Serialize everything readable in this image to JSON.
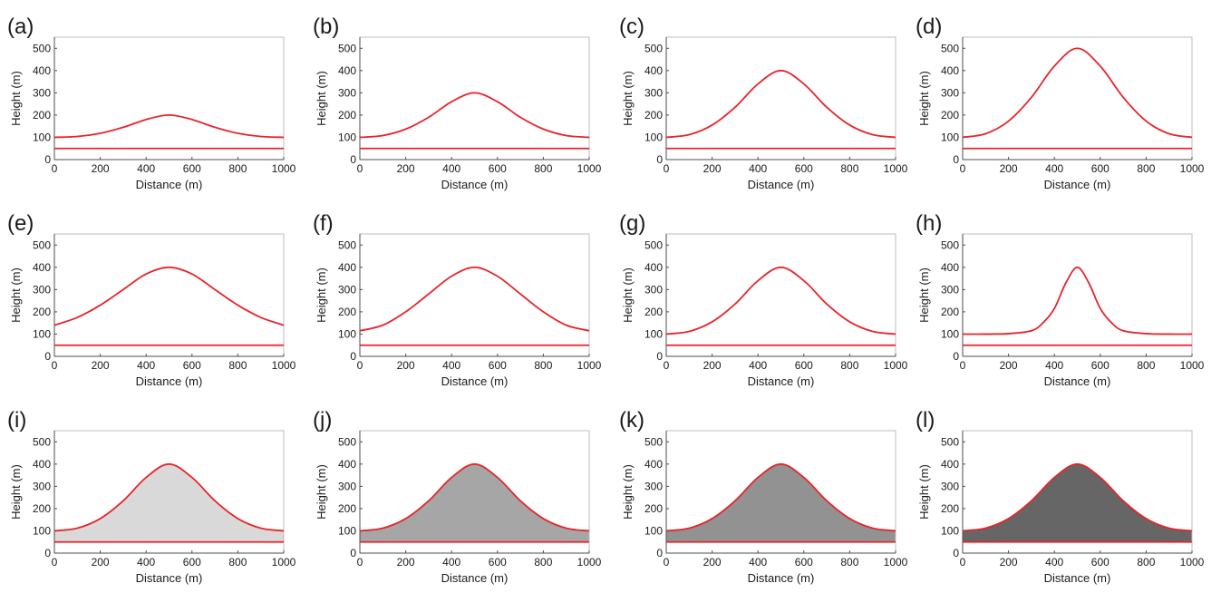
{
  "panel_labels": [
    "(a)",
    "(b)",
    "(c)",
    "(d)",
    "(e)",
    "(f)",
    "(g)",
    "(h)",
    "(i)",
    "(j)",
    "(k)",
    "(l)"
  ],
  "chart_data": [
    {
      "label": "(a)",
      "type": "line",
      "xlabel": "Distance (m)",
      "ylabel": "Height (m)",
      "xlim": [
        0,
        1000
      ],
      "ylim": [
        0,
        550
      ],
      "xticks": [
        0,
        200,
        400,
        600,
        800,
        1000
      ],
      "yticks": [
        0,
        100,
        200,
        300,
        400,
        500
      ],
      "series": [
        {
          "x": [
            0,
            100,
            200,
            300,
            400,
            500,
            600,
            700,
            800,
            900,
            1000
          ],
          "y": [
            100,
            104,
            118,
            145,
            180,
            200,
            180,
            145,
            118,
            104,
            100
          ]
        },
        {
          "x": [
            0,
            1000
          ],
          "y": [
            50,
            50
          ]
        }
      ],
      "line_color": "#e8242a",
      "fill": null
    },
    {
      "label": "(b)",
      "type": "line",
      "xlabel": "Distance (m)",
      "ylabel": "Height (m)",
      "xlim": [
        0,
        1000
      ],
      "ylim": [
        0,
        550
      ],
      "xticks": [
        0,
        200,
        400,
        600,
        800,
        1000
      ],
      "yticks": [
        0,
        100,
        200,
        300,
        400,
        500
      ],
      "series": [
        {
          "x": [
            0,
            100,
            200,
            300,
            400,
            500,
            600,
            700,
            800,
            900,
            1000
          ],
          "y": [
            100,
            108,
            137,
            190,
            260,
            300,
            260,
            190,
            137,
            108,
            100
          ]
        },
        {
          "x": [
            0,
            1000
          ],
          "y": [
            50,
            50
          ]
        }
      ],
      "line_color": "#e8242a",
      "fill": null
    },
    {
      "label": "(c)",
      "type": "line",
      "xlabel": "Distance (m)",
      "ylabel": "Height (m)",
      "xlim": [
        0,
        1000
      ],
      "ylim": [
        0,
        550
      ],
      "xticks": [
        0,
        200,
        400,
        600,
        800,
        1000
      ],
      "yticks": [
        0,
        100,
        200,
        300,
        400,
        500
      ],
      "series": [
        {
          "x": [
            0,
            100,
            200,
            300,
            400,
            500,
            600,
            700,
            800,
            900,
            1000
          ],
          "y": [
            100,
            112,
            155,
            235,
            340,
            400,
            340,
            235,
            155,
            112,
            100
          ]
        },
        {
          "x": [
            0,
            1000
          ],
          "y": [
            50,
            50
          ]
        }
      ],
      "line_color": "#e8242a",
      "fill": null
    },
    {
      "label": "(d)",
      "type": "line",
      "xlabel": "Distance (m)",
      "ylabel": "Height (m)",
      "xlim": [
        0,
        1000
      ],
      "ylim": [
        0,
        550
      ],
      "xticks": [
        0,
        200,
        400,
        600,
        800,
        1000
      ],
      "yticks": [
        0,
        100,
        200,
        300,
        400,
        500
      ],
      "series": [
        {
          "x": [
            0,
            100,
            200,
            300,
            400,
            500,
            600,
            700,
            800,
            900,
            1000
          ],
          "y": [
            100,
            116,
            173,
            280,
            420,
            500,
            420,
            280,
            173,
            116,
            100
          ]
        },
        {
          "x": [
            0,
            1000
          ],
          "y": [
            50,
            50
          ]
        }
      ],
      "line_color": "#e8242a",
      "fill": null
    },
    {
      "label": "(e)",
      "type": "line",
      "xlabel": "Distance (m)",
      "ylabel": "Height (m)",
      "xlim": [
        0,
        1000
      ],
      "ylim": [
        0,
        550
      ],
      "xticks": [
        0,
        200,
        400,
        600,
        800,
        1000
      ],
      "yticks": [
        0,
        100,
        200,
        300,
        400,
        500
      ],
      "series": [
        {
          "x": [
            0,
            100,
            200,
            300,
            400,
            500,
            600,
            700,
            800,
            900,
            1000
          ],
          "y": [
            140,
            175,
            230,
            300,
            370,
            400,
            370,
            300,
            230,
            175,
            140
          ]
        },
        {
          "x": [
            0,
            1000
          ],
          "y": [
            50,
            50
          ]
        }
      ],
      "line_color": "#e8242a",
      "fill": null
    },
    {
      "label": "(f)",
      "type": "line",
      "xlabel": "Distance (m)",
      "ylabel": "Height (m)",
      "xlim": [
        0,
        1000
      ],
      "ylim": [
        0,
        550
      ],
      "xticks": [
        0,
        200,
        400,
        600,
        800,
        1000
      ],
      "yticks": [
        0,
        100,
        200,
        300,
        400,
        500
      ],
      "series": [
        {
          "x": [
            0,
            100,
            200,
            300,
            400,
            500,
            600,
            700,
            800,
            900,
            1000
          ],
          "y": [
            115,
            140,
            200,
            280,
            360,
            400,
            360,
            280,
            200,
            140,
            115
          ]
        },
        {
          "x": [
            0,
            1000
          ],
          "y": [
            50,
            50
          ]
        }
      ],
      "line_color": "#e8242a",
      "fill": null
    },
    {
      "label": "(g)",
      "type": "line",
      "xlabel": "Distance (m)",
      "ylabel": "Height (m)",
      "xlim": [
        0,
        1000
      ],
      "ylim": [
        0,
        550
      ],
      "xticks": [
        0,
        200,
        400,
        600,
        800,
        1000
      ],
      "yticks": [
        0,
        100,
        200,
        300,
        400,
        500
      ],
      "series": [
        {
          "x": [
            0,
            100,
            200,
            300,
            400,
            500,
            600,
            700,
            800,
            900,
            1000
          ],
          "y": [
            100,
            112,
            155,
            235,
            340,
            400,
            340,
            235,
            155,
            112,
            100
          ]
        },
        {
          "x": [
            0,
            1000
          ],
          "y": [
            50,
            50
          ]
        }
      ],
      "line_color": "#e8242a",
      "fill": null
    },
    {
      "label": "(h)",
      "type": "line",
      "xlabel": "Distance (m)",
      "ylabel": "Height (m)",
      "xlim": [
        0,
        1000
      ],
      "ylim": [
        0,
        550
      ],
      "xticks": [
        0,
        200,
        400,
        600,
        800,
        1000
      ],
      "yticks": [
        0,
        100,
        200,
        300,
        400,
        500
      ],
      "series": [
        {
          "x": [
            0,
            100,
            200,
            300,
            350,
            400,
            450,
            500,
            550,
            600,
            650,
            700,
            800,
            900,
            1000
          ],
          "y": [
            100,
            100,
            102,
            115,
            150,
            215,
            330,
            400,
            330,
            215,
            150,
            115,
            102,
            100,
            100
          ]
        },
        {
          "x": [
            0,
            1000
          ],
          "y": [
            50,
            50
          ]
        }
      ],
      "line_color": "#e8242a",
      "fill": null
    },
    {
      "label": "(i)",
      "type": "area",
      "xlabel": "Distance (m)",
      "ylabel": "Height (m)",
      "xlim": [
        0,
        1000
      ],
      "ylim": [
        0,
        550
      ],
      "xticks": [
        0,
        200,
        400,
        600,
        800,
        1000
      ],
      "yticks": [
        0,
        100,
        200,
        300,
        400,
        500
      ],
      "series": [
        {
          "x": [
            0,
            100,
            200,
            300,
            400,
            500,
            600,
            700,
            800,
            900,
            1000
          ],
          "y": [
            100,
            112,
            155,
            235,
            340,
            400,
            340,
            235,
            155,
            112,
            100
          ]
        },
        {
          "x": [
            0,
            1000
          ],
          "y": [
            50,
            50
          ]
        }
      ],
      "line_color": "#e8242a",
      "fill": "#d9d9d9"
    },
    {
      "label": "(j)",
      "type": "area",
      "xlabel": "Distance (m)",
      "ylabel": "Height (m)",
      "xlim": [
        0,
        1000
      ],
      "ylim": [
        0,
        550
      ],
      "xticks": [
        0,
        200,
        400,
        600,
        800,
        1000
      ],
      "yticks": [
        0,
        100,
        200,
        300,
        400,
        500
      ],
      "series": [
        {
          "x": [
            0,
            100,
            200,
            300,
            400,
            500,
            600,
            700,
            800,
            900,
            1000
          ],
          "y": [
            100,
            112,
            155,
            235,
            340,
            400,
            340,
            235,
            155,
            112,
            100
          ]
        },
        {
          "x": [
            0,
            1000
          ],
          "y": [
            50,
            50
          ]
        }
      ],
      "line_color": "#e8242a",
      "fill": "#a6a6a6"
    },
    {
      "label": "(k)",
      "type": "area",
      "xlabel": "Distance (m)",
      "ylabel": "Height (m)",
      "xlim": [
        0,
        1000
      ],
      "ylim": [
        0,
        550
      ],
      "xticks": [
        0,
        200,
        400,
        600,
        800,
        1000
      ],
      "yticks": [
        0,
        100,
        200,
        300,
        400,
        500
      ],
      "series": [
        {
          "x": [
            0,
            100,
            200,
            300,
            400,
            500,
            600,
            700,
            800,
            900,
            1000
          ],
          "y": [
            100,
            112,
            155,
            235,
            340,
            400,
            340,
            235,
            155,
            112,
            100
          ]
        },
        {
          "x": [
            0,
            1000
          ],
          "y": [
            50,
            50
          ]
        }
      ],
      "line_color": "#e8242a",
      "fill": "#929292"
    },
    {
      "label": "(l)",
      "type": "area",
      "xlabel": "Distance (m)",
      "ylabel": "Height (m)",
      "xlim": [
        0,
        1000
      ],
      "ylim": [
        0,
        550
      ],
      "xticks": [
        0,
        200,
        400,
        600,
        800,
        1000
      ],
      "yticks": [
        0,
        100,
        200,
        300,
        400,
        500
      ],
      "series": [
        {
          "x": [
            0,
            100,
            200,
            300,
            400,
            500,
            600,
            700,
            800,
            900,
            1000
          ],
          "y": [
            100,
            112,
            155,
            235,
            340,
            400,
            340,
            235,
            155,
            112,
            100
          ]
        },
        {
          "x": [
            0,
            1000
          ],
          "y": [
            50,
            50
          ]
        }
      ],
      "line_color": "#e8242a",
      "fill": "#666666"
    }
  ]
}
